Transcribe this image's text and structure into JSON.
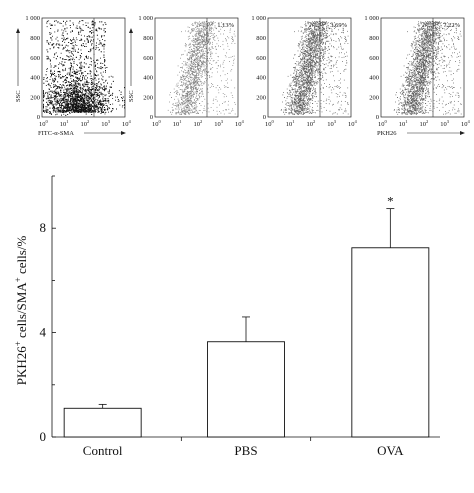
{
  "flow_panels": [
    {
      "ylabel": "SSC",
      "xlabel": "FITC-α-SMA",
      "percent": "",
      "style": "dense"
    },
    {
      "ylabel": "SSC",
      "xlabel": "",
      "percent": "1.13%",
      "style": "light"
    },
    {
      "ylabel": "",
      "xlabel": "",
      "percent": "3.69%",
      "style": "medium"
    },
    {
      "ylabel": "",
      "xlabel": "PKH26",
      "percent": "7.22%",
      "style": "medium"
    }
  ],
  "flow_y_ticks": [
    "1 000",
    "800",
    "600",
    "400",
    "200",
    "0"
  ],
  "flow_x_ticks": [
    "10",
    "10",
    "10",
    "10",
    "10"
  ],
  "flow_x_exps": [
    "0",
    "1",
    "2",
    "3",
    "4"
  ],
  "chart_data": {
    "type": "bar",
    "categories": [
      "Control",
      "PBS",
      "OVA"
    ],
    "values": [
      1.1,
      3.65,
      7.25
    ],
    "errors": [
      0.15,
      0.95,
      1.5
    ],
    "annotations": [
      "",
      "",
      "*"
    ],
    "ylabel": "PKH26+ cells/SMA+ cells/%",
    "ylim": [
      0,
      10
    ],
    "yticks": [
      0,
      4,
      8
    ]
  },
  "ylabel_parts": {
    "a": "PKH26",
    "sup1": "+",
    "b": " cells/SMA",
    "sup2": "+",
    "c": " cells/%"
  }
}
